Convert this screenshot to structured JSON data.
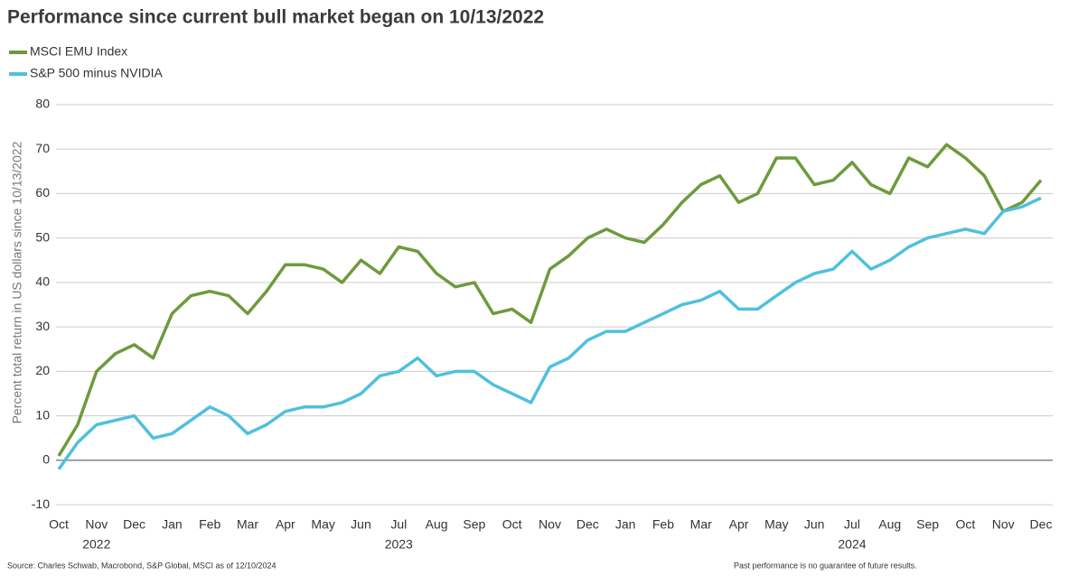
{
  "chart_data": {
    "type": "line",
    "title": "Performance since current bull market began on 10/13/2022",
    "y_label": "Percent total return in US dollars since 10/13/2022",
    "source": "Source: Charles Schwab, Macrobond, S&P Global, MSCI as of 12/10/2024",
    "note": "Past performance is no guarantee of future results.",
    "years": [
      "2022",
      "2023",
      "2024"
    ],
    "categories": [
      "Oct",
      null,
      "Nov",
      null,
      "Dec",
      null,
      "Jan",
      null,
      "Feb",
      null,
      "Mar",
      null,
      "Apr",
      null,
      "May",
      null,
      "Jun",
      null,
      "Jul",
      null,
      "Aug",
      null,
      "Sep",
      null,
      "Oct",
      null,
      "Nov",
      null,
      "Dec",
      null,
      "Jan",
      null,
      "Feb",
      null,
      "Mar",
      null,
      "Apr",
      null,
      "May",
      null,
      "Jun",
      null,
      "Jul",
      null,
      "Aug",
      null,
      "Sep",
      null,
      "Oct",
      null,
      "Nov",
      null,
      "Dec"
    ],
    "series": [
      {
        "name": "MSCI EMU Index",
        "color": "#6e9a3c",
        "values": [
          1,
          8,
          20,
          24,
          26,
          23,
          33,
          37,
          38,
          37,
          33,
          38,
          44,
          44,
          43,
          40,
          45,
          42,
          48,
          47,
          42,
          39,
          40,
          33,
          34,
          31,
          43,
          46,
          50,
          52,
          50,
          49,
          53,
          58,
          62,
          64,
          58,
          60,
          68,
          68,
          62,
          63,
          67,
          62,
          60,
          68,
          66,
          71,
          68,
          64,
          56,
          58,
          63
        ]
      },
      {
        "name": "S&P 500 minus NVIDIA",
        "color": "#4fc0de",
        "values": [
          -2,
          4,
          8,
          9,
          10,
          5,
          6,
          9,
          12,
          10,
          6,
          8,
          11,
          12,
          12,
          13,
          15,
          19,
          20,
          23,
          19,
          20,
          20,
          17,
          15,
          13,
          21,
          23,
          27,
          29,
          29,
          31,
          33,
          35,
          36,
          38,
          34,
          34,
          37,
          40,
          42,
          43,
          47,
          43,
          45,
          48,
          50,
          51,
          52,
          51,
          56,
          57,
          59
        ]
      }
    ],
    "ylim": [
      -12,
      82
    ],
    "yticks": [
      -10,
      0,
      10,
      20,
      30,
      40,
      50,
      60,
      70,
      80
    ],
    "grid": true
  }
}
